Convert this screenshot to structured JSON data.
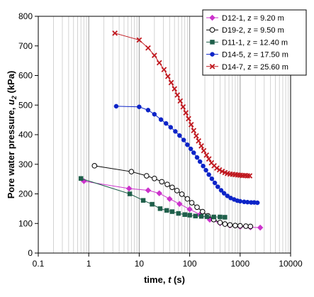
{
  "chart_data": {
    "type": "scatter",
    "x_scale": "log",
    "xlim": [
      0.1,
      10000
    ],
    "ylim": [
      0,
      800
    ],
    "xlabel_prefix": "time, ",
    "xlabel_var": "t",
    "xlabel_suffix": " (s)",
    "ylabel_prefix": "Pore water pressure, ",
    "ylabel_var": "u",
    "ylabel_sub": "2",
    "ylabel_suffix": " (kPa)",
    "x_ticks": [
      0.1,
      1,
      10,
      100,
      1000,
      10000
    ],
    "x_tick_labels": [
      "0.1",
      "1",
      "10",
      "100",
      "1000",
      "10000"
    ],
    "y_ticks": [
      0,
      100,
      200,
      300,
      400,
      500,
      600,
      700,
      800
    ],
    "y_tick_labels": [
      "0",
      "100",
      "200",
      "300",
      "400",
      "500",
      "600",
      "700",
      "800"
    ],
    "grid": "vertical-log",
    "legend_position": "top-right",
    "series": [
      {
        "name": "D12-1, z = 9.20 m",
        "color": "#cc33cc",
        "marker": "diamond",
        "x": [
          0.8,
          6.3,
          15,
          25,
          40,
          63,
          100,
          160,
          250,
          400,
          630,
          1000,
          1600,
          2500
        ],
        "y": [
          243,
          218,
          212,
          202,
          183,
          166,
          148,
          130,
          113,
          101,
          93,
          89,
          87,
          86
        ]
      },
      {
        "name": "D19-2, z = 9.50 m",
        "color": "#000000",
        "marker": "circle-open",
        "x": [
          1.3,
          7,
          14,
          20,
          28,
          36,
          45,
          56,
          70,
          90,
          110,
          140,
          180,
          230,
          300,
          400,
          500,
          630,
          800,
          1000,
          1300,
          1600
        ],
        "y": [
          295,
          275,
          261,
          252,
          241,
          232,
          222,
          211,
          199,
          183,
          170,
          155,
          140,
          126,
          113,
          103,
          98,
          95,
          93,
          92,
          91,
          90
        ]
      },
      {
        "name": "D11-1, z = 12.40 m",
        "color": "#1f5f4a",
        "marker": "square",
        "x": [
          0.7,
          6.5,
          12,
          18,
          26,
          35,
          45,
          60,
          80,
          100,
          130,
          170,
          220,
          300,
          400,
          500
        ],
        "y": [
          252,
          200,
          178,
          165,
          150,
          144,
          140,
          134,
          130,
          128,
          125,
          124,
          123,
          122,
          122,
          121
        ]
      },
      {
        "name": "D14-5, z = 17.50 m",
        "color": "#0d24c8",
        "marker": "circle",
        "x": [
          3.5,
          10,
          15,
          20,
          27,
          34,
          42,
          52,
          63,
          76,
          90,
          105,
          120,
          140,
          160,
          185,
          210,
          240,
          275,
          315,
          360,
          420,
          480,
          560,
          650,
          760,
          880,
          1000,
          1200,
          1400,
          1650,
          1900,
          2200
        ],
        "y": [
          496,
          494,
          483,
          469,
          451,
          438,
          425,
          411,
          397,
          382,
          366,
          352,
          339,
          323,
          309,
          294,
          280,
          265,
          251,
          237,
          224,
          212,
          202,
          193,
          186,
          181,
          177,
          175,
          173,
          172,
          171,
          171,
          170
        ]
      },
      {
        "name": "D14-7, z = 25.60 m",
        "color": "#c0181f",
        "marker": "x",
        "x": [
          3.3,
          10,
          15,
          20,
          25,
          31,
          37,
          43,
          50,
          57,
          65,
          74,
          84,
          95,
          107,
          120,
          135,
          150,
          170,
          190,
          215,
          240,
          270,
          305,
          345,
          390,
          440,
          500,
          560,
          630,
          710,
          800,
          900,
          1000,
          1120,
          1250,
          1400,
          1550
        ],
        "y": [
          743,
          720,
          693,
          668,
          643,
          620,
          597,
          576,
          555,
          534,
          514,
          494,
          474,
          454,
          434,
          414,
          396,
          379,
          362,
          346,
          331,
          318,
          305,
          295,
          287,
          281,
          276,
          272,
          269,
          267,
          266,
          265,
          264,
          263,
          262,
          262,
          261,
          261
        ]
      }
    ]
  }
}
